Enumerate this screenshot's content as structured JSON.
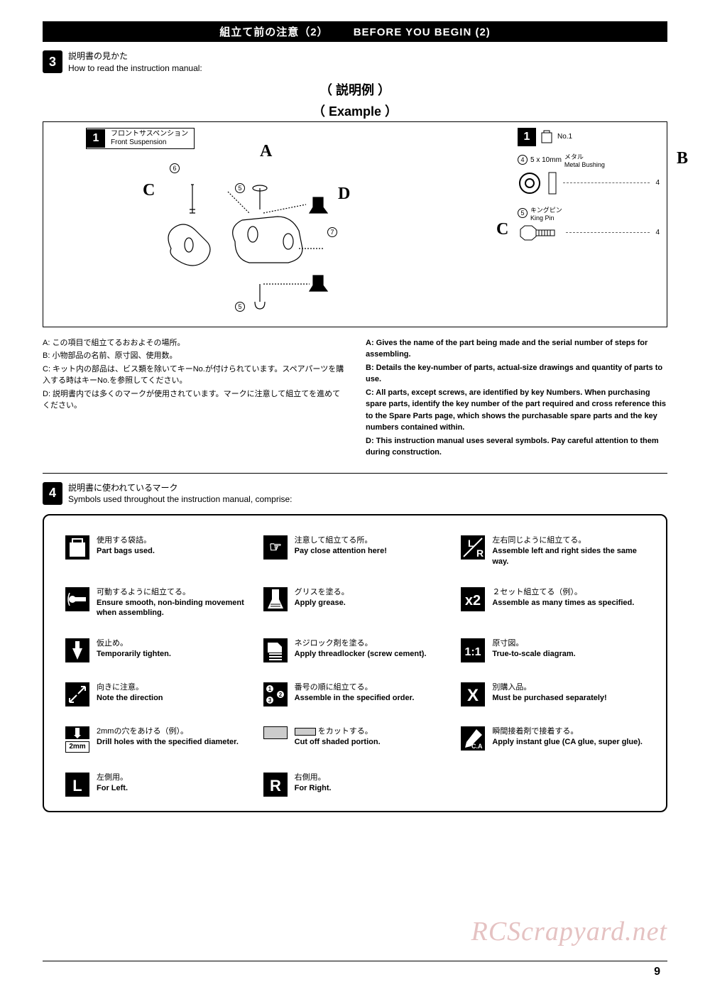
{
  "header": {
    "jp": "組立て前の注意（2）",
    "en": "BEFORE YOU BEGIN (2)"
  },
  "section3": {
    "num": "3",
    "jp": "説明書の見かた",
    "en": "How to read the instruction manual:",
    "example_jp": "（ 説明例 ）",
    "example_en": "（ Example ）",
    "step": {
      "num": "1",
      "jp": "フロントサスペンション",
      "en": "Front Suspension"
    },
    "letters": {
      "a": "A",
      "b": "B",
      "c": "C",
      "c2": "C",
      "d": "D"
    },
    "circles": {
      "n4": "4",
      "n5": "5",
      "n5b": "5",
      "n5c": "5",
      "n6": "6",
      "n7": "7"
    },
    "right_panel": {
      "step": "1",
      "bag_label": "No.1",
      "part4_circ": "4",
      "part4_size": "5 x 10mm",
      "part4_jp": "メタル",
      "part4_en": "Metal Bushing",
      "part4_qty": "4",
      "part5_circ": "5",
      "part5_jp": "キングピン",
      "part5_en": "King Pin",
      "part5_qty": "4"
    }
  },
  "abc_jp": {
    "a": "A: この項目で組立てるおおよその場所。",
    "b": "B: 小物部品の名前、原寸図、使用数。",
    "c": "C: キット内の部品は、ビス類を除いてキーNo.が付けられています。スペアパーツを購入する時はキーNo.を参照してください。",
    "d": "D: 説明書内では多くのマークが使用されています。マークに注意して組立てを進めてください。"
  },
  "abc_en": {
    "a": "A: Gives the name of the part being made and the serial number of steps for assembling.",
    "b": "B: Details the key-number of parts, actual-size drawings and quantity of parts to use.",
    "c": "C: All parts, except screws, are identified by key Numbers. When purchasing spare parts, identify the key number of the part required and cross reference this to the Spare Parts page, which shows the purchasable spare parts and the key numbers contained within.",
    "d": "D: This instruction manual uses several symbols. Pay careful attention to them during construction."
  },
  "section4": {
    "num": "4",
    "jp": "説明書に使われているマーク",
    "en": "Symbols used throughout the instruction manual, comprise:"
  },
  "symbols": [
    {
      "icon": "bag",
      "jp": "使用する袋詰。",
      "en": "Part bags used."
    },
    {
      "icon": "hand",
      "jp": "注意して組立てる所。",
      "en": "Pay close attention here!"
    },
    {
      "icon": "lr",
      "jp": "左右同じように組立てる。",
      "en": "Assemble left and right sides the same way."
    },
    {
      "icon": "smooth",
      "jp": "可動するように組立てる。",
      "en": "Ensure smooth, non-binding movement when assembling."
    },
    {
      "icon": "grease",
      "jp": "グリスを塗る。",
      "en": "Apply grease."
    },
    {
      "icon": "x2",
      "jp": "２セット組立てる（例）。",
      "en": "Assemble as many times as specified."
    },
    {
      "icon": "temp",
      "jp": "仮止め。",
      "en": "Temporarily tighten."
    },
    {
      "icon": "lock",
      "jp": "ネジロック剤を塗る。",
      "en": "Apply threadlocker (screw cement)."
    },
    {
      "icon": "11",
      "jp": "原寸図。",
      "en": "True-to-scale diagram."
    },
    {
      "icon": "dir",
      "jp": "向きに注意。",
      "en": "Note the direction"
    },
    {
      "icon": "order",
      "jp": "番号の順に組立てる。",
      "en": "Assemble in the specified order."
    },
    {
      "icon": "X",
      "jp": "別購入品。",
      "en": "Must be purchased separately!"
    },
    {
      "icon": "2mm",
      "jp": "2mmの穴をあける（例）。",
      "en": "Drill holes with the specified diameter."
    },
    {
      "icon": "cut",
      "jp": "　　をカットする。",
      "en": "Cut off shaded portion.",
      "cutbox": true
    },
    {
      "icon": "ca",
      "jp": "瞬間接着剤で接着する。",
      "en": "Apply instant glue (CA glue, super glue)."
    },
    {
      "icon": "L",
      "jp": "左側用。",
      "en": "For Left."
    },
    {
      "icon": "R",
      "jp": "右側用。",
      "en": "For Right."
    }
  ],
  "icon_text": {
    "bag": "",
    "hand": "☞",
    "lr": "L/R",
    "smooth": "",
    "grease": "",
    "x2": "x2",
    "temp": "",
    "lock": "",
    "11": "1:1",
    "dir": "↗↙",
    "order": "①②③",
    "X": "X",
    "2mm": "2mm",
    "cut": "",
    "ca": "C.A",
    "L": "L",
    "R": "R"
  },
  "watermark": "RCScrapyard.net",
  "page_num": "9",
  "colors": {
    "black": "#000000",
    "white": "#ffffff",
    "grey": "#d0d0d0",
    "watermark": "#d49a9a"
  }
}
